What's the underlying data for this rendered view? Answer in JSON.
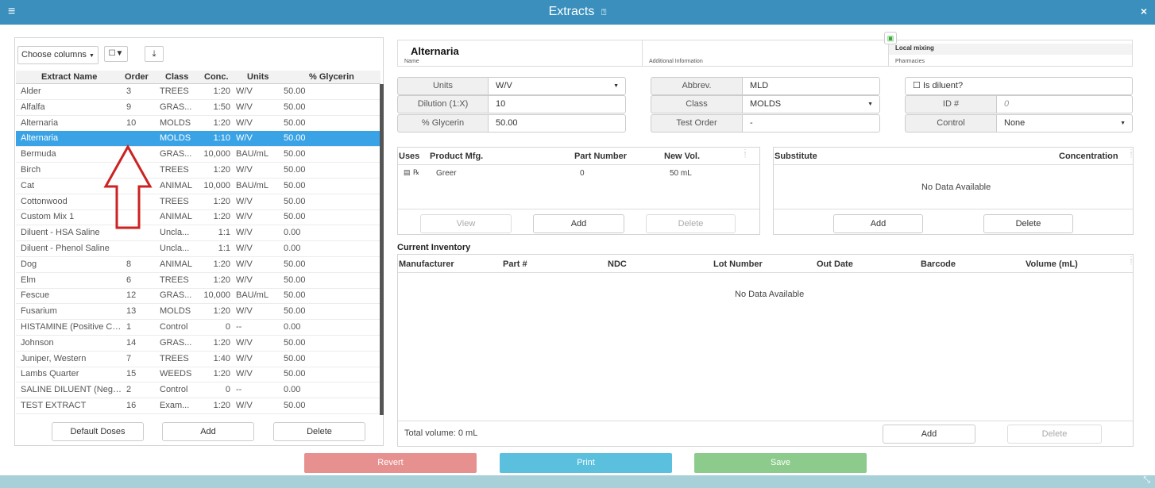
{
  "title": {
    "text": "Extracts",
    "help_icon": "?",
    "menu_icon": "≡",
    "close_icon": "×"
  },
  "toolbar": {
    "choose_columns": "Choose columns",
    "filter_icon": "☐▼",
    "download_icon": "⤓"
  },
  "grid": {
    "headers": [
      "Extract Name",
      "Order",
      "Class",
      "Conc.",
      "Units",
      "% Glycerin"
    ],
    "rows": [
      {
        "name": "Alder",
        "order": "3",
        "class": "TREES",
        "conc": "1:20",
        "units": "W/V",
        "glycerin": "50.00"
      },
      {
        "name": "Alfalfa",
        "order": "9",
        "class": "GRAS...",
        "conc": "1:50",
        "units": "W/V",
        "glycerin": "50.00"
      },
      {
        "name": "Alternaria",
        "order": "10",
        "class": "MOLDS",
        "conc": "1:20",
        "units": "W/V",
        "glycerin": "50.00"
      },
      {
        "name": "Alternaria",
        "order": "",
        "class": "MOLDS",
        "conc": "1:10",
        "units": "W/V",
        "glycerin": "50.00",
        "selected": true
      },
      {
        "name": "Bermuda",
        "order": "",
        "class": "GRAS...",
        "conc": "10,000",
        "units": "BAU/mL",
        "glycerin": "50.00"
      },
      {
        "name": "Birch",
        "order": "",
        "class": "TREES",
        "conc": "1:20",
        "units": "W/V",
        "glycerin": "50.00"
      },
      {
        "name": "Cat",
        "order": "",
        "class": "ANIMAL",
        "conc": "10,000",
        "units": "BAU/mL",
        "glycerin": "50.00"
      },
      {
        "name": "Cottonwood",
        "order": "",
        "class": "TREES",
        "conc": "1:20",
        "units": "W/V",
        "glycerin": "50.00"
      },
      {
        "name": "Custom Mix 1",
        "order": "",
        "class": "ANIMAL",
        "conc": "1:20",
        "units": "W/V",
        "glycerin": "50.00"
      },
      {
        "name": "Diluent - HSA Saline",
        "order": "",
        "class": "Uncla...",
        "conc": "1:1",
        "units": "W/V",
        "glycerin": "0.00"
      },
      {
        "name": "Diluent - Phenol Saline",
        "order": "",
        "class": "Uncla...",
        "conc": "1:1",
        "units": "W/V",
        "glycerin": "0.00"
      },
      {
        "name": "Dog",
        "order": "8",
        "class": "ANIMAL",
        "conc": "1:20",
        "units": "W/V",
        "glycerin": "50.00"
      },
      {
        "name": "Elm",
        "order": "6",
        "class": "TREES",
        "conc": "1:20",
        "units": "W/V",
        "glycerin": "50.00"
      },
      {
        "name": "Fescue",
        "order": "12",
        "class": "GRAS...",
        "conc": "10,000",
        "units": "BAU/mL",
        "glycerin": "50.00"
      },
      {
        "name": "Fusarium",
        "order": "13",
        "class": "MOLDS",
        "conc": "1:20",
        "units": "W/V",
        "glycerin": "50.00"
      },
      {
        "name": "HISTAMINE (Positive Co...",
        "order": "1",
        "class": "Control",
        "conc": "0",
        "units": "--",
        "glycerin": "0.00"
      },
      {
        "name": "Johnson",
        "order": "14",
        "class": "GRAS...",
        "conc": "1:20",
        "units": "W/V",
        "glycerin": "50.00"
      },
      {
        "name": "Juniper, Western",
        "order": "7",
        "class": "TREES",
        "conc": "1:40",
        "units": "W/V",
        "glycerin": "50.00"
      },
      {
        "name": "Lambs Quarter",
        "order": "15",
        "class": "WEEDS",
        "conc": "1:20",
        "units": "W/V",
        "glycerin": "50.00"
      },
      {
        "name": "SALINE DILUENT (Negat...",
        "order": "2",
        "class": "Control",
        "conc": "0",
        "units": "--",
        "glycerin": "0.00"
      },
      {
        "name": "TEST EXTRACT",
        "order": "16",
        "class": "Exam...",
        "conc": "1:20",
        "units": "W/V",
        "glycerin": "50.00"
      }
    ],
    "buttons": {
      "default_doses": "Default Doses",
      "add": "Add",
      "delete": "Delete"
    }
  },
  "header": {
    "name": "Alternaria",
    "name_label": "Name",
    "additional_label": "Additional Information",
    "pharmacy": "Local mixing",
    "pharmacies_label": "Pharmacies"
  },
  "form": {
    "units_label": "Units",
    "units_value": "W/V",
    "dilution_label": "Dilution (1:X)",
    "dilution_value": "10",
    "glycerin_label": "% Glycerin",
    "glycerin_value": "50.00",
    "abbrev_label": "Abbrev.",
    "abbrev_value": "MLD",
    "class_label": "Class",
    "class_value": "MOLDS",
    "test_order_label": "Test Order",
    "test_order_value": "-",
    "diluent_label": "Is diluent?",
    "id_label": "ID #",
    "id_value": "0",
    "control_label": "Control",
    "control_value": "None"
  },
  "products": {
    "headers": [
      "Uses",
      "Product Mfg.",
      "Part Number",
      "New Vol."
    ],
    "rows": [
      {
        "mfg": "Greer",
        "part": "0",
        "vol": "50 mL"
      }
    ],
    "buttons": {
      "view": "View",
      "add": "Add",
      "delete": "Delete"
    }
  },
  "substitute": {
    "headers": [
      "Substitute",
      "Concentration"
    ],
    "empty": "No Data Available",
    "buttons": {
      "add": "Add",
      "delete": "Delete"
    }
  },
  "inventory": {
    "title": "Current Inventory",
    "headers": [
      "Manufacturer",
      "Part #",
      "NDC",
      "Lot Number",
      "Out Date",
      "Barcode",
      "Volume (mL)"
    ],
    "empty": "No Data Available",
    "total": "Total volume: 0 mL",
    "buttons": {
      "add": "Add",
      "delete": "Delete"
    }
  },
  "actions": {
    "revert": "Revert",
    "print": "Print",
    "save": "Save"
  },
  "colors": {
    "titlebar": "#3a8fbd",
    "selected_row": "#3aa3e6",
    "revert": "#e69090",
    "print": "#5bc0de",
    "save": "#8ccb8c",
    "arrow": "#cc2222"
  }
}
